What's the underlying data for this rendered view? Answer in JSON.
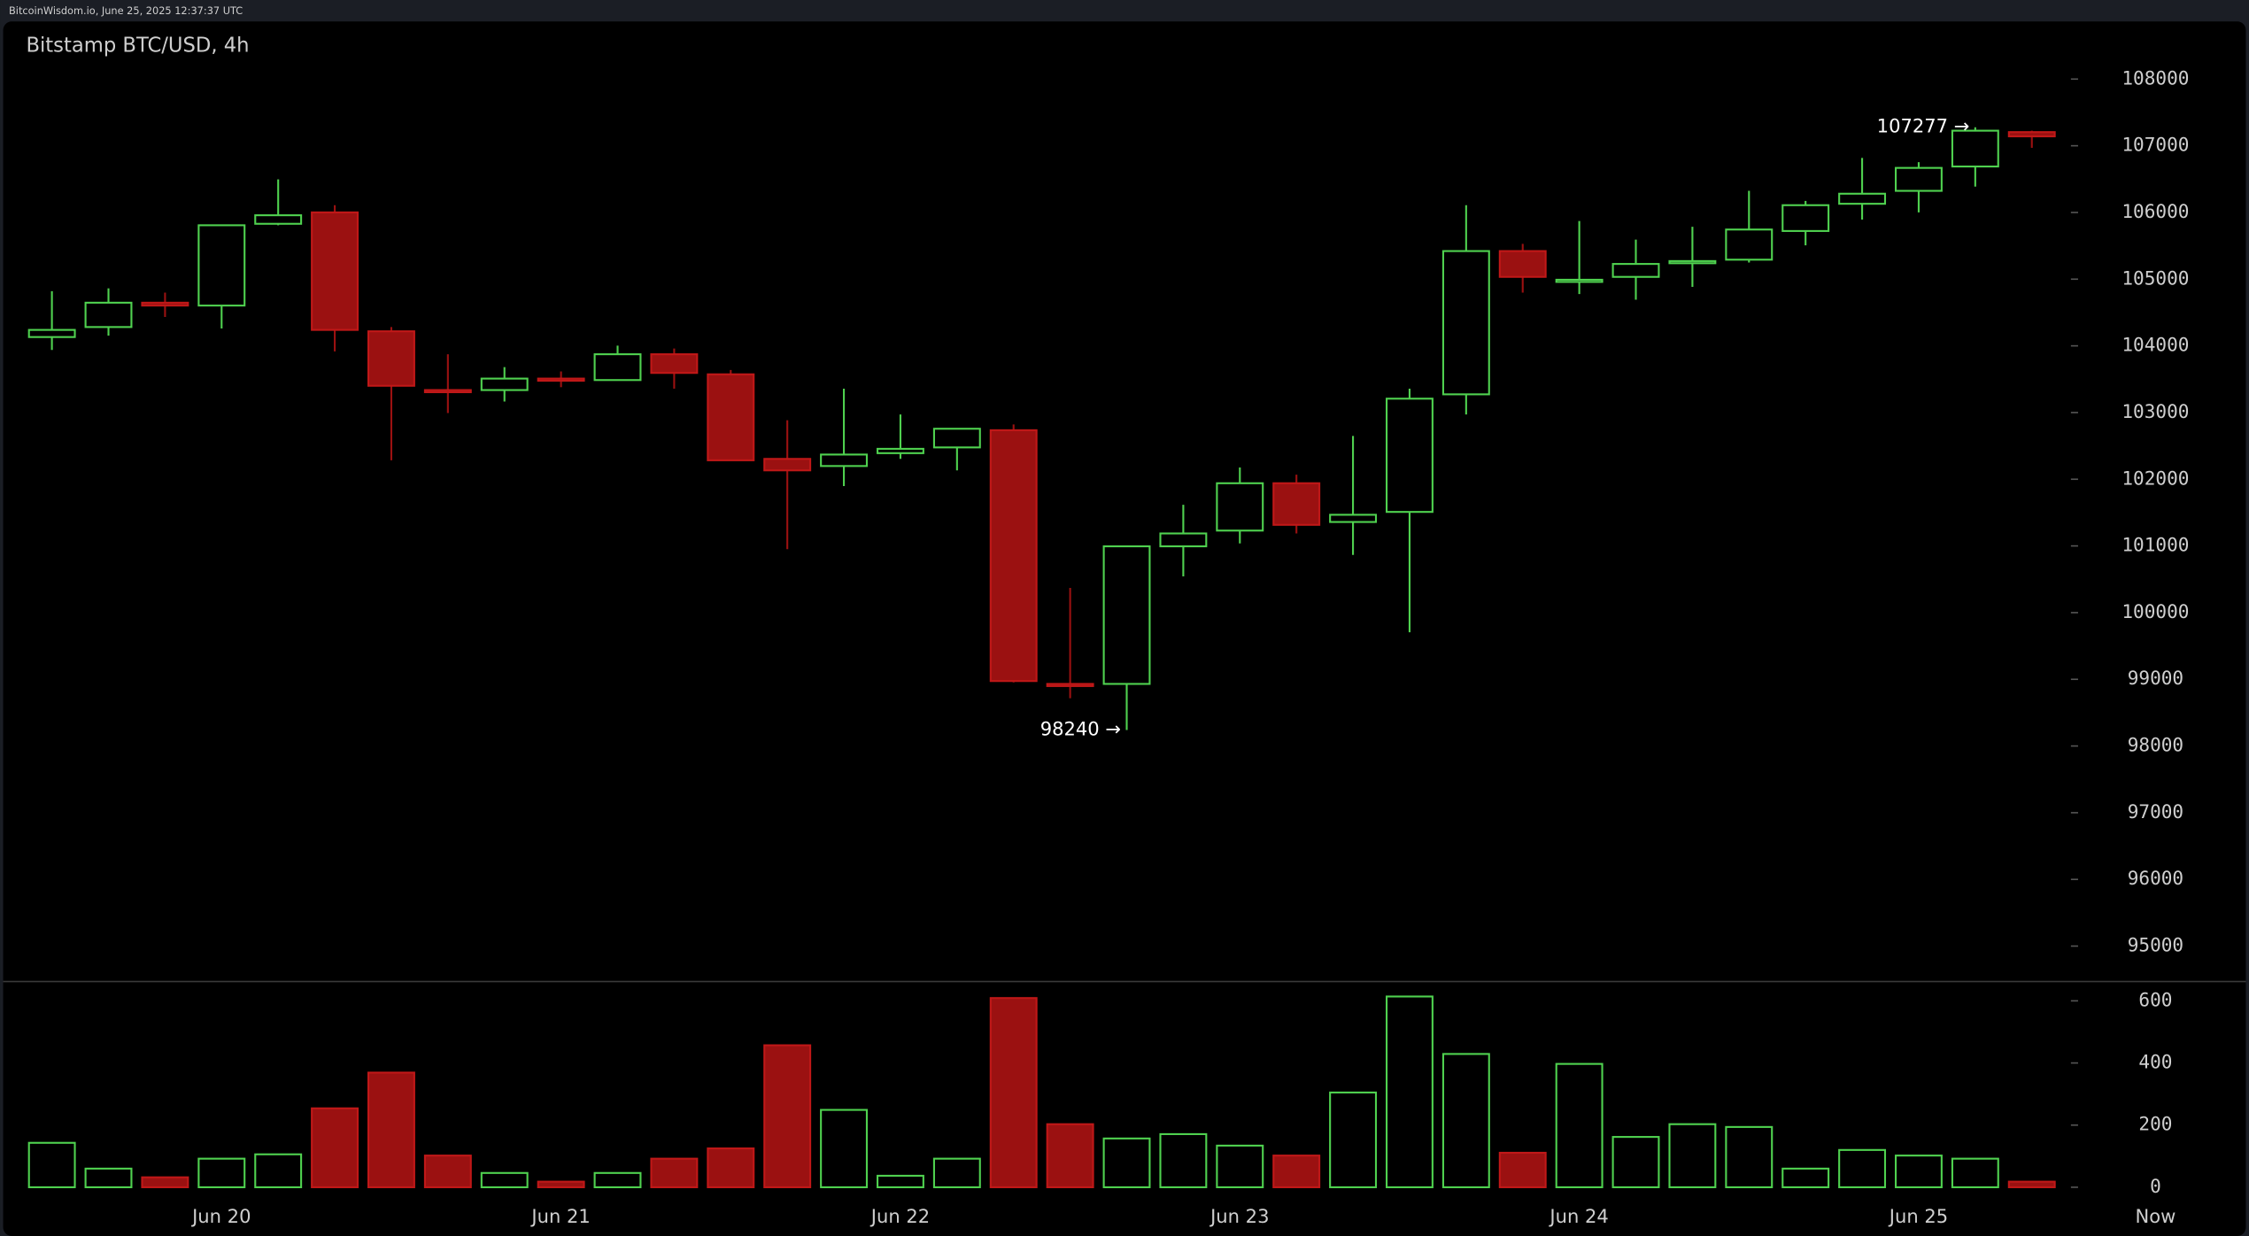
{
  "chart_data": {
    "type": "candlestick",
    "header": "BitcoinWisdom.io, June 25, 2025 12:37:37 UTC",
    "title": "Bitstamp BTC/USD, 4h",
    "categories": [
      null,
      null,
      null,
      "Jun 20",
      null,
      null,
      null,
      null,
      null,
      "Jun 21",
      null,
      null,
      null,
      null,
      null,
      "Jun 22",
      null,
      null,
      null,
      null,
      null,
      "Jun 23",
      null,
      null,
      null,
      null,
      null,
      "Jun 24",
      null,
      null,
      null,
      null,
      null,
      "Jun 25",
      null,
      null
    ],
    "x_end_label": "Now",
    "open": [
      104132,
      104282,
      104647,
      104604,
      105830,
      106001,
      104218,
      103337,
      103337,
      103509,
      103487,
      103874,
      103573,
      102305,
      102198,
      102391,
      102477,
      102735,
      98931,
      98931,
      100994,
      101230,
      101940,
      101359,
      101510,
      103273,
      105421,
      104970,
      105034,
      105249,
      105292,
      105722,
      106130,
      106324,
      106689,
      107205
    ],
    "high": [
      104819,
      104862,
      104798,
      105808,
      106496,
      106109,
      104282,
      103874,
      103681,
      103616,
      104003,
      103960,
      103638,
      102885,
      103358,
      102971,
      102756,
      102821,
      100371,
      100994,
      101617,
      102176,
      102069,
      102649,
      103358,
      106109,
      105529,
      105872,
      105593,
      105786,
      106324,
      106173,
      106818,
      106754,
      107277,
      107226
    ],
    "low": [
      103938,
      104153,
      104433,
      104261,
      105808,
      103917,
      102284,
      102993,
      103165,
      103380,
      103487,
      103358,
      102284,
      100951,
      101897,
      102305,
      102133,
      98953,
      98716,
      98240,
      100543,
      101037,
      101187,
      100865,
      99705,
      102971,
      104798,
      104776,
      104691,
      104884,
      105249,
      105507,
      105894,
      106001,
      106388,
      106969
    ],
    "close": [
      104239,
      104647,
      104604,
      105808,
      105958,
      104239,
      103401,
      103315,
      103509,
      103487,
      103874,
      103594,
      102284,
      102133,
      102370,
      102456,
      102757,
      98974,
      98910,
      100994,
      101187,
      101940,
      101316,
      101467,
      103208,
      105421,
      105034,
      104991,
      105228,
      105271,
      105744,
      106109,
      106281,
      106668,
      107226,
      107141
    ],
    "up_color": "#4fd14f",
    "down_color": "#9b1111",
    "ylim": [
      94480,
      108820
    ],
    "yticks": [
      95000,
      96000,
      97000,
      98000,
      99000,
      100000,
      101000,
      102000,
      103000,
      104000,
      105000,
      106000,
      107000,
      108000
    ],
    "annotations": [
      {
        "value": 98240,
        "label": "98240 →"
      },
      {
        "value": 107277,
        "label": "107277 →"
      }
    ],
    "volume": {
      "values": [
        143,
        60,
        32,
        92,
        106,
        254,
        369,
        102,
        46,
        18,
        46,
        92,
        125,
        457,
        249,
        37,
        92,
        609,
        203,
        157,
        171,
        134,
        102,
        305,
        614,
        429,
        111,
        397,
        162,
        203,
        194,
        60,
        120,
        102,
        92,
        18
      ],
      "ylim": [
        0,
        660
      ],
      "yticks": [
        0,
        200,
        400,
        600
      ]
    }
  }
}
